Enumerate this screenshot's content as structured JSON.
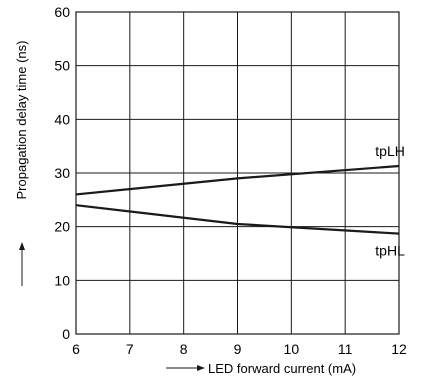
{
  "chart_data": {
    "type": "line",
    "title": "",
    "xlabel": "LED forward current (mA)",
    "ylabel": "Propagation delay time (ns)",
    "xlim": [
      6,
      12
    ],
    "ylim": [
      0,
      60
    ],
    "x_ticks": [
      6,
      7,
      8,
      9,
      10,
      11,
      12
    ],
    "y_ticks": [
      0,
      10,
      20,
      30,
      40,
      50,
      60
    ],
    "grid": true,
    "legend": "none; series labeled directly on lines",
    "line_color": "#1a1a1a",
    "series": [
      {
        "name": "tpLH",
        "x": [
          6,
          9,
          12
        ],
        "y": [
          26,
          29,
          31.3
        ]
      },
      {
        "name": "tpHL",
        "x": [
          6,
          9,
          12
        ],
        "y": [
          24,
          20.5,
          18.7
        ]
      }
    ]
  }
}
